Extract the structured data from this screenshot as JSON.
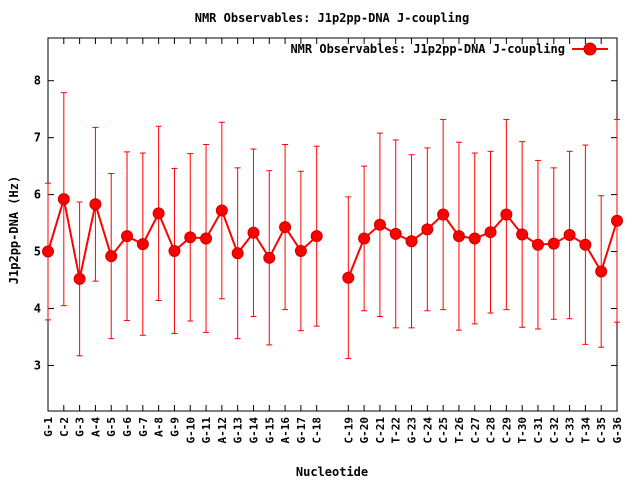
{
  "chart_data": {
    "type": "line",
    "title": "NMR Observables: J1p2pp-DNA J-coupling",
    "xlabel": "Nucleotide",
    "ylabel": "J1p2pp-DNA (Hz)",
    "ylim": [
      2.2,
      8.75
    ],
    "yticks": [
      3,
      4,
      5,
      6,
      7,
      8
    ],
    "legend_placement": "top-right",
    "color": "#ff0000",
    "series": [
      {
        "name": "NMR Observables: J1p2pp-DNA J-coupling",
        "segments": [
          {
            "x": [
              "G-1",
              "C-2",
              "G-3",
              "A-4",
              "G-5",
              "G-6",
              "G-7",
              "A-8",
              "G-9",
              "G-10",
              "G-11",
              "A-12",
              "G-13",
              "G-14",
              "G-15",
              "A-16",
              "G-17",
              "C-18"
            ],
            "values": [
              5.0,
              5.92,
              4.52,
              5.83,
              4.92,
              5.27,
              5.13,
              5.67,
              5.01,
              5.25,
              5.23,
              5.72,
              4.97,
              5.33,
              4.89,
              5.43,
              5.01,
              5.27
            ],
            "error": [
              1.2,
              1.87,
              1.35,
              1.35,
              1.45,
              1.48,
              1.6,
              1.53,
              1.45,
              1.47,
              1.65,
              1.55,
              1.5,
              1.47,
              1.53,
              1.45,
              1.4,
              1.58
            ]
          },
          {
            "x": [
              "C-19",
              "G-20",
              "C-21",
              "T-22",
              "G-23",
              "C-24",
              "C-25",
              "T-26",
              "C-27",
              "C-28",
              "C-29",
              "T-30",
              "C-31",
              "C-32",
              "C-33",
              "T-34",
              "C-35",
              "G-36"
            ],
            "values": [
              4.54,
              5.23,
              5.47,
              5.31,
              5.18,
              5.39,
              5.65,
              5.27,
              5.23,
              5.34,
              5.65,
              5.3,
              5.12,
              5.14,
              5.29,
              5.12,
              4.65,
              5.54
            ],
            "error": [
              1.42,
              1.27,
              1.61,
              1.65,
              1.52,
              1.43,
              1.67,
              1.65,
              1.5,
              1.42,
              1.67,
              1.63,
              1.48,
              1.33,
              1.47,
              1.75,
              1.33,
              1.78
            ]
          }
        ]
      }
    ]
  }
}
